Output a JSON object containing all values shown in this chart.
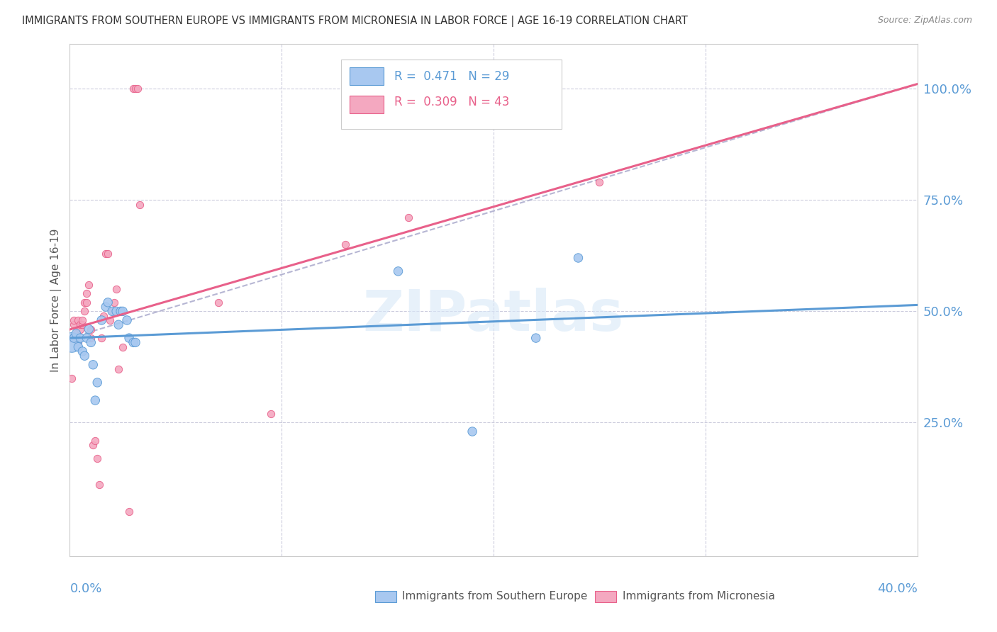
{
  "title": "IMMIGRANTS FROM SOUTHERN EUROPE VS IMMIGRANTS FROM MICRONESIA IN LABOR FORCE | AGE 16-19 CORRELATION CHART",
  "source": "Source: ZipAtlas.com",
  "ylabel": "In Labor Force | Age 16-19",
  "blue_R": 0.471,
  "blue_N": 29,
  "pink_R": 0.309,
  "pink_N": 43,
  "blue_color": "#A8C8F0",
  "pink_color": "#F4A8C0",
  "blue_edge_color": "#5B9BD5",
  "pink_edge_color": "#E8608A",
  "blue_line_color": "#5B9BD5",
  "pink_line_color": "#E8608A",
  "gray_dash_color": "#AAAACC",
  "axis_color": "#5B9BD5",
  "blue_scatter_x": [
    0.001,
    0.002,
    0.003,
    0.004,
    0.005,
    0.006,
    0.007,
    0.008,
    0.009,
    0.01,
    0.011,
    0.012,
    0.013,
    0.015,
    0.017,
    0.018,
    0.02,
    0.022,
    0.023,
    0.024,
    0.025,
    0.027,
    0.028,
    0.03,
    0.031,
    0.155,
    0.19,
    0.22,
    0.24
  ],
  "blue_scatter_y": [
    0.43,
    0.44,
    0.45,
    0.42,
    0.44,
    0.41,
    0.4,
    0.44,
    0.46,
    0.43,
    0.38,
    0.3,
    0.34,
    0.48,
    0.51,
    0.52,
    0.5,
    0.5,
    0.47,
    0.5,
    0.5,
    0.48,
    0.44,
    0.43,
    0.43,
    0.59,
    0.23,
    0.44,
    0.62
  ],
  "blue_scatter_sizes": [
    400,
    80,
    80,
    80,
    80,
    80,
    80,
    80,
    80,
    80,
    80,
    80,
    80,
    80,
    80,
    80,
    80,
    80,
    80,
    80,
    80,
    80,
    80,
    80,
    80,
    80,
    80,
    80,
    80
  ],
  "pink_scatter_x": [
    0.001,
    0.001,
    0.002,
    0.002,
    0.003,
    0.003,
    0.004,
    0.004,
    0.005,
    0.005,
    0.006,
    0.006,
    0.007,
    0.007,
    0.008,
    0.008,
    0.009,
    0.01,
    0.01,
    0.011,
    0.012,
    0.013,
    0.014,
    0.015,
    0.016,
    0.017,
    0.018,
    0.019,
    0.02,
    0.021,
    0.022,
    0.023,
    0.025,
    0.028,
    0.03,
    0.031,
    0.032,
    0.033,
    0.07,
    0.095,
    0.13,
    0.16,
    0.25
  ],
  "pink_scatter_y": [
    0.35,
    0.44,
    0.47,
    0.48,
    0.44,
    0.45,
    0.43,
    0.48,
    0.46,
    0.47,
    0.47,
    0.48,
    0.5,
    0.52,
    0.54,
    0.52,
    0.56,
    0.44,
    0.46,
    0.2,
    0.21,
    0.17,
    0.11,
    0.44,
    0.49,
    0.63,
    0.63,
    0.48,
    0.5,
    0.52,
    0.55,
    0.37,
    0.42,
    0.05,
    1.0,
    1.0,
    1.0,
    0.74,
    0.52,
    0.27,
    0.65,
    0.71,
    0.79
  ],
  "xlim": [
    0.0,
    0.4
  ],
  "ylim": [
    -0.05,
    1.1
  ],
  "watermark": "ZIPatlas",
  "background_color": "#FFFFFF",
  "grid_color": "#CCCCDD",
  "legend_blue_label": "Immigrants from Southern Europe",
  "legend_pink_label": "Immigrants from Micronesia"
}
